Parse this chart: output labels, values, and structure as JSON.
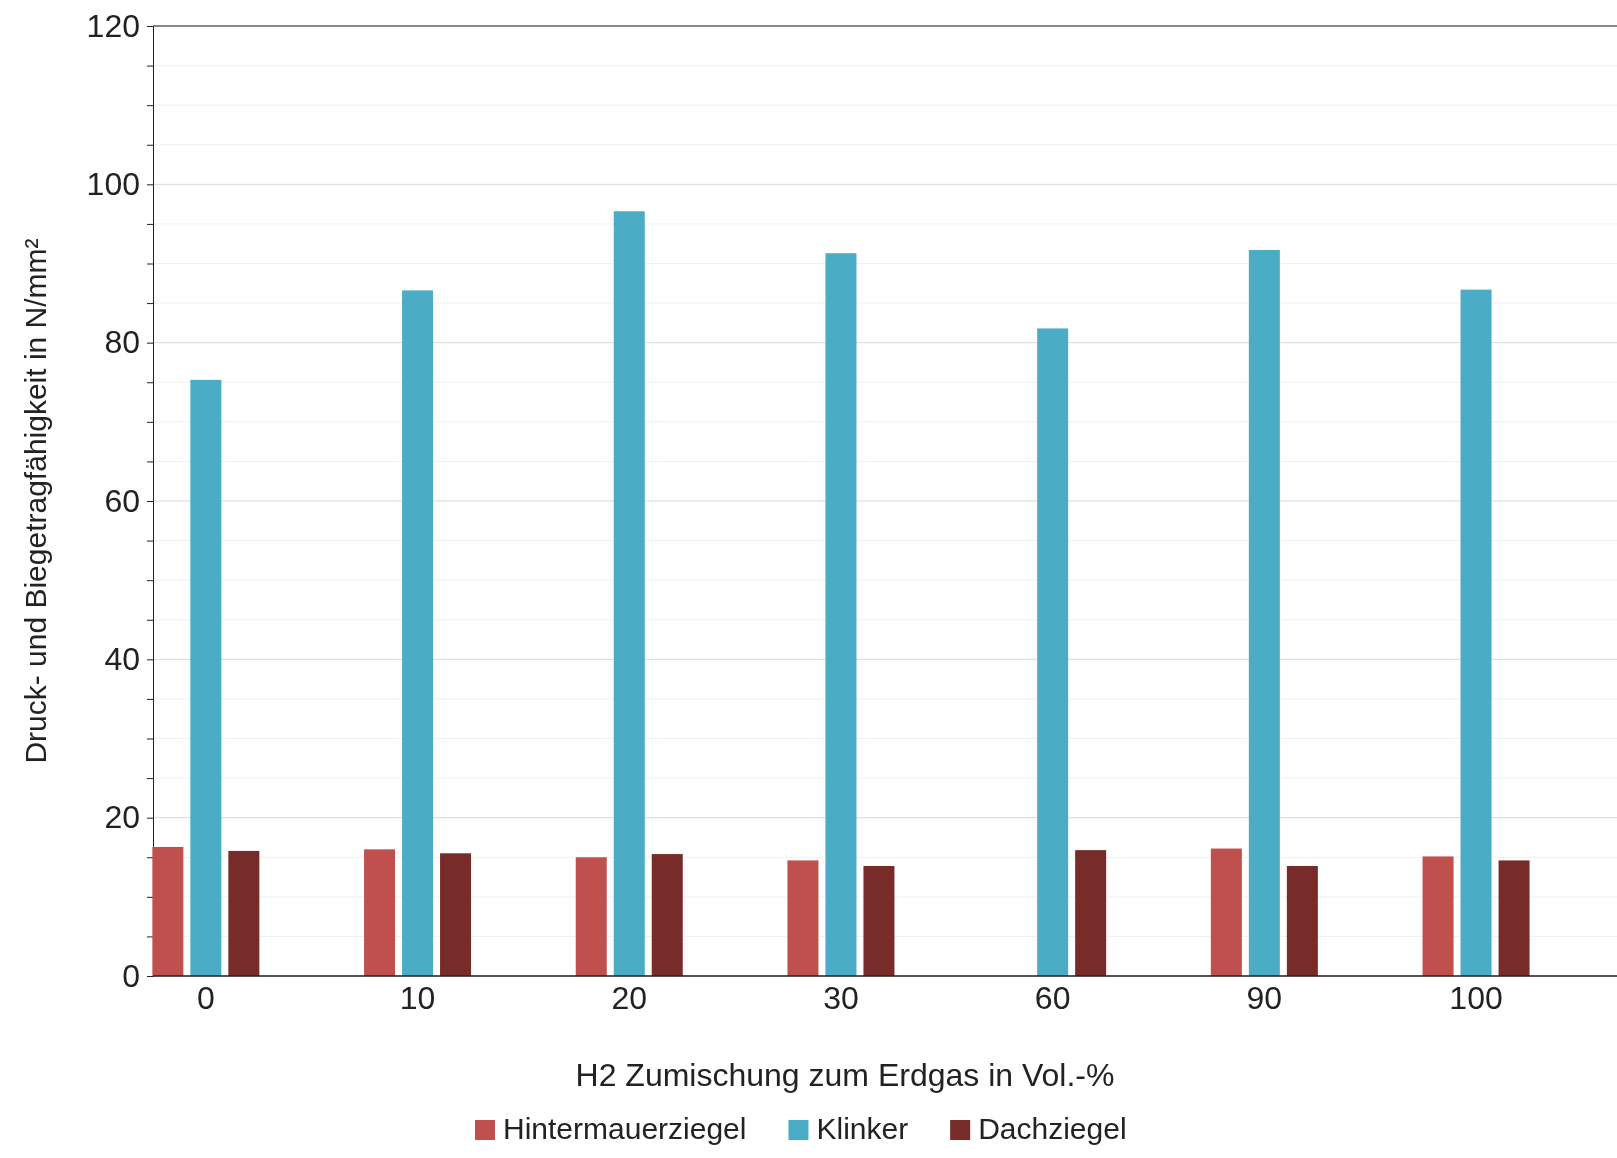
{
  "chart_data": {
    "type": "bar",
    "xlabel": "H2 Zumischung zum Erdgas in Vol.-%",
    "ylabel": "Druck- und Biegetragfähigkeit in N/mm²",
    "categories": [
      "0",
      "10",
      "20",
      "30",
      "60",
      "90",
      "100"
    ],
    "series": [
      {
        "name": "Hintermauerziegel",
        "color": "#c0504d",
        "values": [
          16.3,
          16.0,
          15.0,
          14.6,
          null,
          16.1,
          15.1
        ]
      },
      {
        "name": "Klinker",
        "color": "#4bacc6",
        "values": [
          75.3,
          86.6,
          96.6,
          91.3,
          81.8,
          91.7,
          86.7
        ]
      },
      {
        "name": "Dachziegel",
        "color": "#772c2a",
        "values": [
          15.8,
          15.5,
          15.4,
          13.9,
          15.9,
          13.9,
          14.6
        ]
      }
    ],
    "ylim": [
      0,
      120
    ],
    "yticks": [
      0,
      {
        "value": 5,
        "label": null
      },
      {
        "value": 10,
        "label": null
      },
      {
        "value": 15,
        "label": null
      },
      20,
      {
        "value": 25,
        "label": null
      },
      {
        "value": 30,
        "label": null
      },
      {
        "value": 35,
        "label": null
      },
      40,
      {
        "value": 45,
        "label": null
      },
      {
        "value": 50,
        "label": null
      },
      {
        "value": 55,
        "label": null
      },
      60,
      {
        "value": 65,
        "label": null
      },
      {
        "value": 70,
        "label": null
      },
      {
        "value": 75,
        "label": null
      },
      80,
      {
        "value": 85,
        "label": null
      },
      {
        "value": 90,
        "label": null
      },
      {
        "value": 95,
        "label": null
      },
      100,
      {
        "value": 105,
        "label": null
      },
      {
        "value": 110,
        "label": null
      },
      {
        "value": 115,
        "label": null
      },
      120
    ],
    "grid": "y",
    "legend": "bottom"
  }
}
